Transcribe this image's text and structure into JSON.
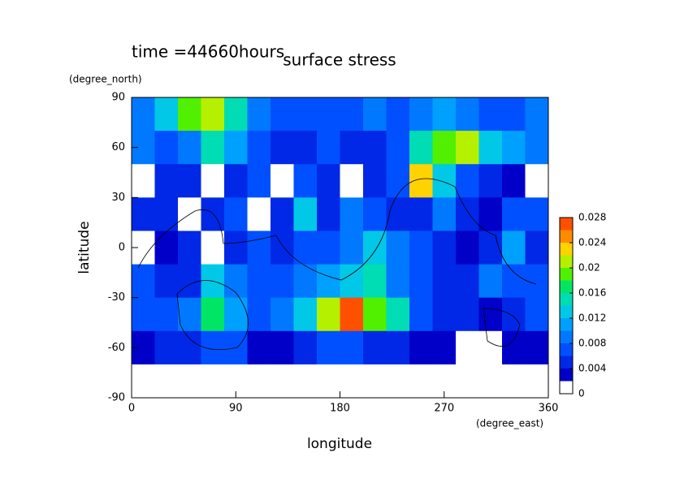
{
  "chart_data": {
    "type": "contour",
    "title": "surface stress",
    "subtitle": "time =44660hours",
    "x_label": "longitude",
    "x_unit": "(degree_east)",
    "y_label": "latitude",
    "y_unit": "(degree_north)",
    "x": [
      10,
      30,
      50,
      70,
      90,
      110,
      130,
      150,
      170,
      190,
      210,
      230,
      250,
      270,
      290,
      310,
      330,
      350
    ],
    "y": [
      80,
      60,
      40,
      20,
      0,
      -20,
      -40,
      -60,
      -80
    ],
    "z": [
      [
        0.008,
        0.012,
        0.018,
        0.02,
        0.014,
        0.008,
        0.006,
        0.006,
        0.006,
        0.006,
        0.008,
        0.006,
        0.008,
        0.01,
        0.008,
        0.006,
        0.006,
        0.008
      ],
      [
        0.008,
        0.006,
        0.008,
        0.014,
        0.01,
        0.006,
        0.004,
        0.004,
        0.006,
        0.004,
        0.004,
        0.006,
        0.014,
        0.018,
        0.02,
        0.012,
        0.01,
        0.008
      ],
      [
        0,
        0.004,
        0.004,
        0,
        0.004,
        0.006,
        0,
        0.006,
        0.004,
        0,
        0.004,
        0.006,
        0.022,
        0.012,
        0.006,
        0.004,
        0.002,
        0
      ],
      [
        0.004,
        0.004,
        0,
        0.004,
        0.006,
        0,
        0.004,
        0.012,
        0.004,
        0.008,
        0.006,
        0.004,
        0.004,
        0.008,
        0.004,
        0.002,
        0.006,
        0.006
      ],
      [
        0,
        0.002,
        0.004,
        0,
        0.004,
        0.006,
        0.004,
        0.006,
        0.006,
        0.008,
        0.012,
        0.008,
        0.006,
        0.004,
        0.002,
        0.004,
        0.01,
        0.004
      ],
      [
        0.006,
        0.004,
        0.004,
        0.012,
        0.008,
        0.006,
        0.006,
        0.008,
        0.01,
        0.012,
        0.014,
        0.008,
        0.006,
        0.004,
        0.004,
        0.008,
        0.006,
        0.006
      ],
      [
        0.006,
        0.006,
        0.008,
        0.016,
        0.01,
        0.006,
        0.008,
        0.012,
        0.02,
        0.026,
        0.018,
        0.014,
        0.006,
        0.004,
        0.004,
        0.002,
        0.004,
        0.006
      ],
      [
        0.002,
        0.004,
        0.004,
        0.006,
        0.006,
        0.002,
        0.002,
        0.004,
        0.006,
        0.006,
        0.004,
        0.004,
        0.002,
        0.002,
        0,
        0,
        0.002,
        0.002
      ],
      [
        0,
        0,
        0,
        0,
        0,
        0,
        0,
        0,
        0,
        0,
        0,
        0,
        0,
        0,
        0,
        0,
        0,
        0
      ]
    ],
    "levels": [
      0,
      0.002,
      0.004,
      0.006,
      0.008,
      0.01,
      0.012,
      0.014,
      0.016,
      0.018,
      0.02,
      0.022,
      0.024,
      0.026,
      0.028
    ],
    "colors": [
      "#ffffff",
      "#0000c8",
      "#0028e6",
      "#0050ff",
      "#0078ff",
      "#00a0ff",
      "#00c8e6",
      "#00dcb4",
      "#00e664",
      "#50f000",
      "#b4f000",
      "#ffd200",
      "#ff8c00",
      "#ff5000",
      "#e61400"
    ],
    "xlim": [
      0,
      360
    ],
    "xticks": [
      0,
      90,
      180,
      270,
      360
    ],
    "ylim": [
      -90,
      90
    ],
    "yticks": [
      -90,
      -60,
      -30,
      0,
      30,
      60,
      90
    ],
    "colorbar_ticks": [
      0,
      0.004,
      0.008,
      0.012,
      0.016,
      0.02,
      0.024,
      0.028
    ]
  }
}
